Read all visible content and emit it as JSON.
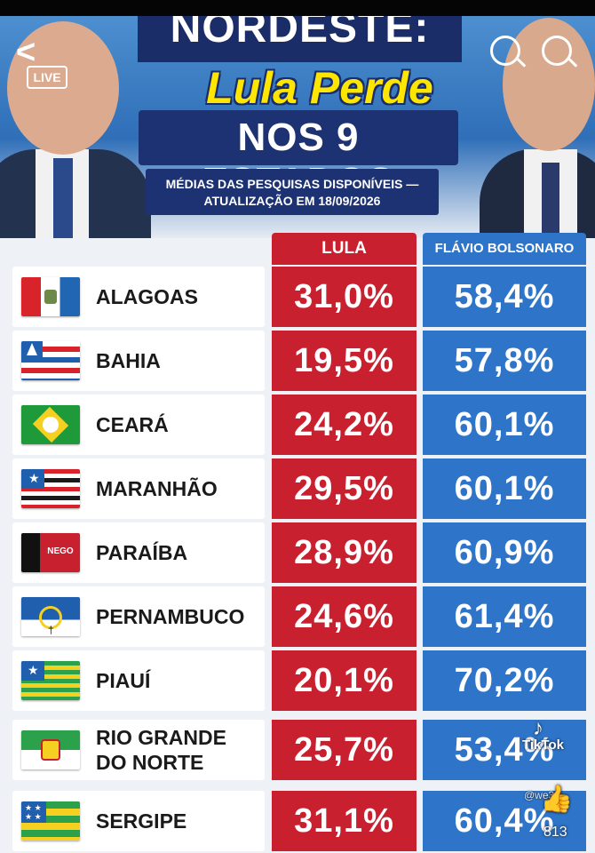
{
  "header": {
    "title_top": "NORDESTE:",
    "title_mid": "Lula Perde",
    "title_bottom": "NOS 9 ESTADOS",
    "subtitle_line1": "MÉDIAS DAS PESQUISAS DISPONÍVEIS —",
    "subtitle_line2": "ATUALIZAÇÃO EM 18/09/2026"
  },
  "overlay": {
    "live": "LIVE",
    "tiktok": "TikTok",
    "handle": "@we3_",
    "like_count": "813"
  },
  "table": {
    "columns": [
      "LULA",
      "FLÁVIO BOLSONARO"
    ],
    "rows": [
      {
        "state": "ALAGOAS",
        "lula": "31,0%",
        "flavio": "58,4%"
      },
      {
        "state": "BAHIA",
        "lula": "19,5%",
        "flavio": "57,8%"
      },
      {
        "state": "CEARÁ",
        "lula": "24,2%",
        "flavio": "60,1%"
      },
      {
        "state": "MARANHÃO",
        "lula": "29,5%",
        "flavio": "60,1%"
      },
      {
        "state": "PARAÍBA",
        "lula": "28,9%",
        "flavio": "60,9%",
        "flag_text": "NEGO"
      },
      {
        "state": "PERNAMBUCO",
        "lula": "24,6%",
        "flavio": "61,4%"
      },
      {
        "state": "PIAUÍ",
        "lula": "20,1%",
        "flavio": "70,2%"
      },
      {
        "state": "RIO GRANDE DO NORTE",
        "state_line1": "RIO GRANDE",
        "state_line2": "DO NORTE",
        "lula": "25,7%",
        "flavio": "53,4%"
      },
      {
        "state": "SERGIPE",
        "lula": "31,1%",
        "flavio": "60,4%"
      }
    ]
  },
  "colors": {
    "lula_red": "#c8202f",
    "flavio_blue": "#2e75c9",
    "title_yellow": "#ffe600",
    "navy": "#1d3272"
  }
}
